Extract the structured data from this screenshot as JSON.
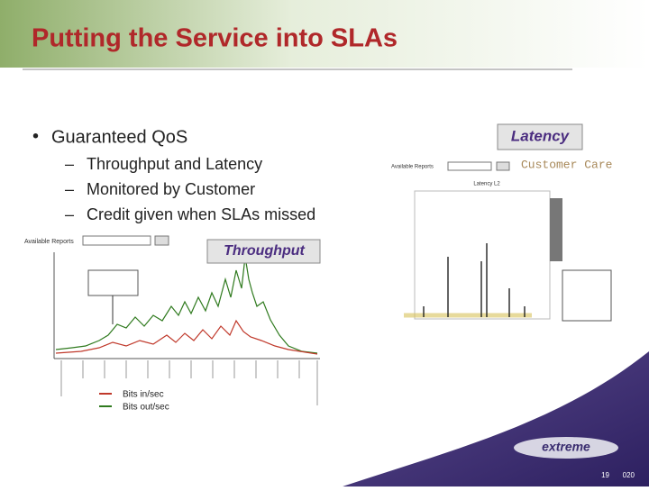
{
  "title": "Putting the Service into SLAs",
  "bullets": [
    {
      "text": "Guaranteed QoS",
      "sub": [
        "Throughput and Latency",
        "Monitored by Customer",
        "Credit given when SLAs missed"
      ]
    }
  ],
  "callouts": {
    "latency": "Latency",
    "throughput": "Throughput",
    "customer_care": "Customer Care"
  },
  "screens": {
    "reports_label": "Available Reports",
    "latency_chart_title": "Latency L2"
  },
  "legend": [
    "Bits in/sec",
    "Bits out/sec"
  ],
  "footer": {
    "page": "19",
    "code": "020"
  }
}
